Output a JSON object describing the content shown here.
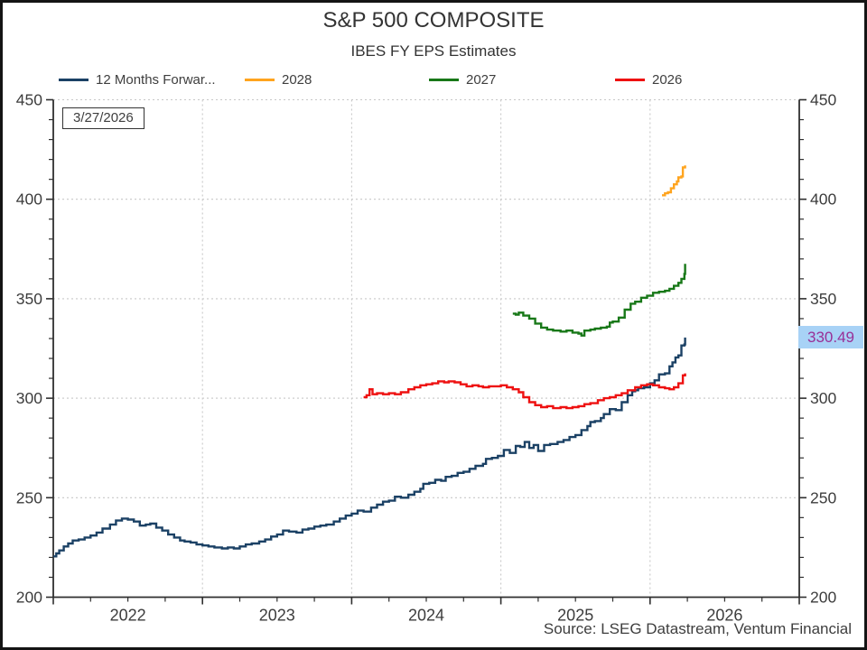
{
  "date_stamp": "3/27/2026",
  "last_value_badge": {
    "text": "330.49",
    "bg": "#a8d2f6",
    "color": "#993097"
  },
  "source": "Source: LSEG Datastream, Ventum Financial",
  "chart_data": {
    "type": "line",
    "title": "S&P 500 COMPOSITE",
    "subtitle": "IBES FY EPS Estimates",
    "legend_position": "top",
    "grid": "dotted major gridlines, horizontal at 250-450 step 50, vertical at year boundaries",
    "x_axis": {
      "range": [
        2022,
        2027
      ],
      "tick_labels": [
        "2022",
        "2023",
        "2024",
        "2025",
        "2026"
      ],
      "minor_tick_interval_years": 0.25,
      "label_color": "#3d3d3d"
    },
    "y_axis": {
      "range": [
        200,
        450
      ],
      "ticks": [
        200,
        250,
        300,
        350,
        400,
        450
      ],
      "minor_tick_interval": 10,
      "sides": [
        "left",
        "right"
      ],
      "label_color": "#3d3d3d"
    },
    "legend": [
      {
        "label": "12 Months Forwar...",
        "color": "#1b4165"
      },
      {
        "label": "2028",
        "color": "#ffa41e"
      },
      {
        "label": "2027",
        "color": "#187818"
      },
      {
        "label": "2026",
        "color": "#ee1111"
      }
    ],
    "series": [
      {
        "name": "12 Months Forward EPS",
        "color": "#1b4165",
        "points": [
          [
            2022.0,
            220.5
          ],
          [
            2022.02,
            222
          ],
          [
            2022.04,
            223.5
          ],
          [
            2022.07,
            225.5
          ],
          [
            2022.1,
            227
          ],
          [
            2022.13,
            228.5
          ],
          [
            2022.17,
            229
          ],
          [
            2022.21,
            230
          ],
          [
            2022.25,
            231
          ],
          [
            2022.29,
            232.5
          ],
          [
            2022.33,
            234.5
          ],
          [
            2022.38,
            236.5
          ],
          [
            2022.42,
            238.5
          ],
          [
            2022.46,
            239.5
          ],
          [
            2022.5,
            239
          ],
          [
            2022.54,
            238
          ],
          [
            2022.58,
            236
          ],
          [
            2022.62,
            236.5
          ],
          [
            2022.65,
            237
          ],
          [
            2022.69,
            235
          ],
          [
            2022.73,
            233.5
          ],
          [
            2022.77,
            231.5
          ],
          [
            2022.81,
            230
          ],
          [
            2022.85,
            228.5
          ],
          [
            2022.88,
            228
          ],
          [
            2022.92,
            227.5
          ],
          [
            2022.96,
            226.5
          ],
          [
            2023.0,
            226
          ],
          [
            2023.04,
            225.5
          ],
          [
            2023.08,
            225
          ],
          [
            2023.13,
            224.5
          ],
          [
            2023.17,
            225
          ],
          [
            2023.21,
            224.5
          ],
          [
            2023.25,
            225.5
          ],
          [
            2023.29,
            226.5
          ],
          [
            2023.33,
            227
          ],
          [
            2023.38,
            228
          ],
          [
            2023.42,
            229
          ],
          [
            2023.46,
            230.5
          ],
          [
            2023.5,
            231.5
          ],
          [
            2023.54,
            233.5
          ],
          [
            2023.58,
            233
          ],
          [
            2023.63,
            232.5
          ],
          [
            2023.67,
            234
          ],
          [
            2023.71,
            234.5
          ],
          [
            2023.75,
            235.5
          ],
          [
            2023.79,
            236
          ],
          [
            2023.83,
            236.5
          ],
          [
            2023.88,
            238
          ],
          [
            2023.92,
            239.5
          ],
          [
            2023.96,
            241
          ],
          [
            2024.0,
            242
          ],
          [
            2024.04,
            243.5
          ],
          [
            2024.08,
            243
          ],
          [
            2024.13,
            245
          ],
          [
            2024.17,
            246.5
          ],
          [
            2024.21,
            248
          ],
          [
            2024.25,
            248.5
          ],
          [
            2024.29,
            250.5
          ],
          [
            2024.33,
            250
          ],
          [
            2024.38,
            251.5
          ],
          [
            2024.42,
            253
          ],
          [
            2024.46,
            254.5
          ],
          [
            2024.48,
            257
          ],
          [
            2024.52,
            257.5
          ],
          [
            2024.56,
            259
          ],
          [
            2024.6,
            258.5
          ],
          [
            2024.63,
            260.5
          ],
          [
            2024.67,
            261
          ],
          [
            2024.71,
            262.5
          ],
          [
            2024.75,
            263
          ],
          [
            2024.79,
            264.5
          ],
          [
            2024.83,
            266
          ],
          [
            2024.88,
            267
          ],
          [
            2024.9,
            269.5
          ],
          [
            2024.94,
            270
          ],
          [
            2024.98,
            271
          ],
          [
            2025.02,
            274
          ],
          [
            2025.06,
            272.5
          ],
          [
            2025.1,
            276
          ],
          [
            2025.13,
            275.5
          ],
          [
            2025.16,
            278
          ],
          [
            2025.19,
            275
          ],
          [
            2025.22,
            276.5
          ],
          [
            2025.25,
            273.5
          ],
          [
            2025.29,
            276.5
          ],
          [
            2025.33,
            277
          ],
          [
            2025.38,
            278
          ],
          [
            2025.42,
            279
          ],
          [
            2025.46,
            280.5
          ],
          [
            2025.5,
            281.5
          ],
          [
            2025.54,
            284
          ],
          [
            2025.58,
            286
          ],
          [
            2025.6,
            288
          ],
          [
            2025.63,
            288.5
          ],
          [
            2025.67,
            290
          ],
          [
            2025.69,
            292
          ],
          [
            2025.73,
            294.5
          ],
          [
            2025.77,
            294
          ],
          [
            2025.81,
            298
          ],
          [
            2025.85,
            301.5
          ],
          [
            2025.88,
            303.5
          ],
          [
            2025.9,
            304
          ],
          [
            2025.92,
            305
          ],
          [
            2025.96,
            305.5
          ],
          [
            2026.0,
            307.5
          ],
          [
            2026.03,
            309
          ],
          [
            2026.06,
            312
          ],
          [
            2026.1,
            312.5
          ],
          [
            2026.13,
            316
          ],
          [
            2026.15,
            318
          ],
          [
            2026.17,
            320.5
          ],
          [
            2026.19,
            321.5
          ],
          [
            2026.21,
            326.5
          ],
          [
            2026.23,
            327
          ],
          [
            2026.235,
            330.49
          ]
        ]
      },
      {
        "name": "2028",
        "color": "#ffa41e",
        "points": [
          [
            2026.08,
            402
          ],
          [
            2026.1,
            403
          ],
          [
            2026.12,
            403.5
          ],
          [
            2026.14,
            405.5
          ],
          [
            2026.16,
            407.5
          ],
          [
            2026.18,
            409
          ],
          [
            2026.19,
            411
          ],
          [
            2026.21,
            411.5
          ],
          [
            2026.22,
            416
          ],
          [
            2026.235,
            417
          ]
        ]
      },
      {
        "name": "2027",
        "color": "#187818",
        "points": [
          [
            2025.08,
            342.5
          ],
          [
            2025.1,
            342
          ],
          [
            2025.12,
            343
          ],
          [
            2025.15,
            341.5
          ],
          [
            2025.19,
            340
          ],
          [
            2025.23,
            337.5
          ],
          [
            2025.27,
            335.5
          ],
          [
            2025.31,
            334.5
          ],
          [
            2025.35,
            334
          ],
          [
            2025.4,
            333.5
          ],
          [
            2025.44,
            334
          ],
          [
            2025.48,
            333
          ],
          [
            2025.52,
            332.5
          ],
          [
            2025.54,
            331.5
          ],
          [
            2025.56,
            334
          ],
          [
            2025.6,
            334.5
          ],
          [
            2025.63,
            335
          ],
          [
            2025.67,
            335.5
          ],
          [
            2025.71,
            336
          ],
          [
            2025.73,
            338
          ],
          [
            2025.75,
            338.5
          ],
          [
            2025.79,
            340.5
          ],
          [
            2025.83,
            344.5
          ],
          [
            2025.87,
            347.5
          ],
          [
            2025.9,
            348.5
          ],
          [
            2025.94,
            350.5
          ],
          [
            2025.98,
            351.5
          ],
          [
            2026.02,
            353
          ],
          [
            2026.06,
            353.5
          ],
          [
            2026.1,
            354
          ],
          [
            2026.13,
            355
          ],
          [
            2026.16,
            356.5
          ],
          [
            2026.19,
            358
          ],
          [
            2026.21,
            360
          ],
          [
            2026.23,
            362.5
          ],
          [
            2026.235,
            367.5
          ]
        ]
      },
      {
        "name": "2026",
        "color": "#ee1111",
        "points": [
          [
            2024.08,
            300.5
          ],
          [
            2024.1,
            301.5
          ],
          [
            2024.12,
            304.5
          ],
          [
            2024.14,
            302
          ],
          [
            2024.17,
            302.5
          ],
          [
            2024.21,
            302
          ],
          [
            2024.25,
            302.5
          ],
          [
            2024.29,
            302
          ],
          [
            2024.33,
            303
          ],
          [
            2024.38,
            304.5
          ],
          [
            2024.42,
            305.5
          ],
          [
            2024.46,
            306.5
          ],
          [
            2024.5,
            307
          ],
          [
            2024.54,
            307.5
          ],
          [
            2024.58,
            308.5
          ],
          [
            2024.62,
            308
          ],
          [
            2024.65,
            308.5
          ],
          [
            2024.69,
            308
          ],
          [
            2024.73,
            307
          ],
          [
            2024.77,
            306
          ],
          [
            2024.81,
            306.5
          ],
          [
            2024.85,
            306
          ],
          [
            2024.88,
            305.5
          ],
          [
            2024.92,
            306
          ],
          [
            2024.96,
            306
          ],
          [
            2025.0,
            306.5
          ],
          [
            2025.04,
            305.5
          ],
          [
            2025.08,
            304.5
          ],
          [
            2025.12,
            303
          ],
          [
            2025.15,
            300.5
          ],
          [
            2025.19,
            298
          ],
          [
            2025.23,
            296.5
          ],
          [
            2025.27,
            295.5
          ],
          [
            2025.31,
            296
          ],
          [
            2025.35,
            295
          ],
          [
            2025.4,
            295.5
          ],
          [
            2025.44,
            295
          ],
          [
            2025.48,
            295.5
          ],
          [
            2025.52,
            296
          ],
          [
            2025.56,
            297
          ],
          [
            2025.6,
            297.5
          ],
          [
            2025.65,
            299
          ],
          [
            2025.69,
            300
          ],
          [
            2025.73,
            300.5
          ],
          [
            2025.77,
            301.5
          ],
          [
            2025.81,
            302.5
          ],
          [
            2025.85,
            304
          ],
          [
            2025.9,
            305.5
          ],
          [
            2025.94,
            306.5
          ],
          [
            2025.98,
            307
          ],
          [
            2026.02,
            306.5
          ],
          [
            2026.06,
            305.5
          ],
          [
            2026.1,
            305
          ],
          [
            2026.13,
            304.5
          ],
          [
            2026.16,
            305.5
          ],
          [
            2026.19,
            307.5
          ],
          [
            2026.22,
            311.5
          ],
          [
            2026.235,
            312.5
          ]
        ]
      }
    ]
  }
}
